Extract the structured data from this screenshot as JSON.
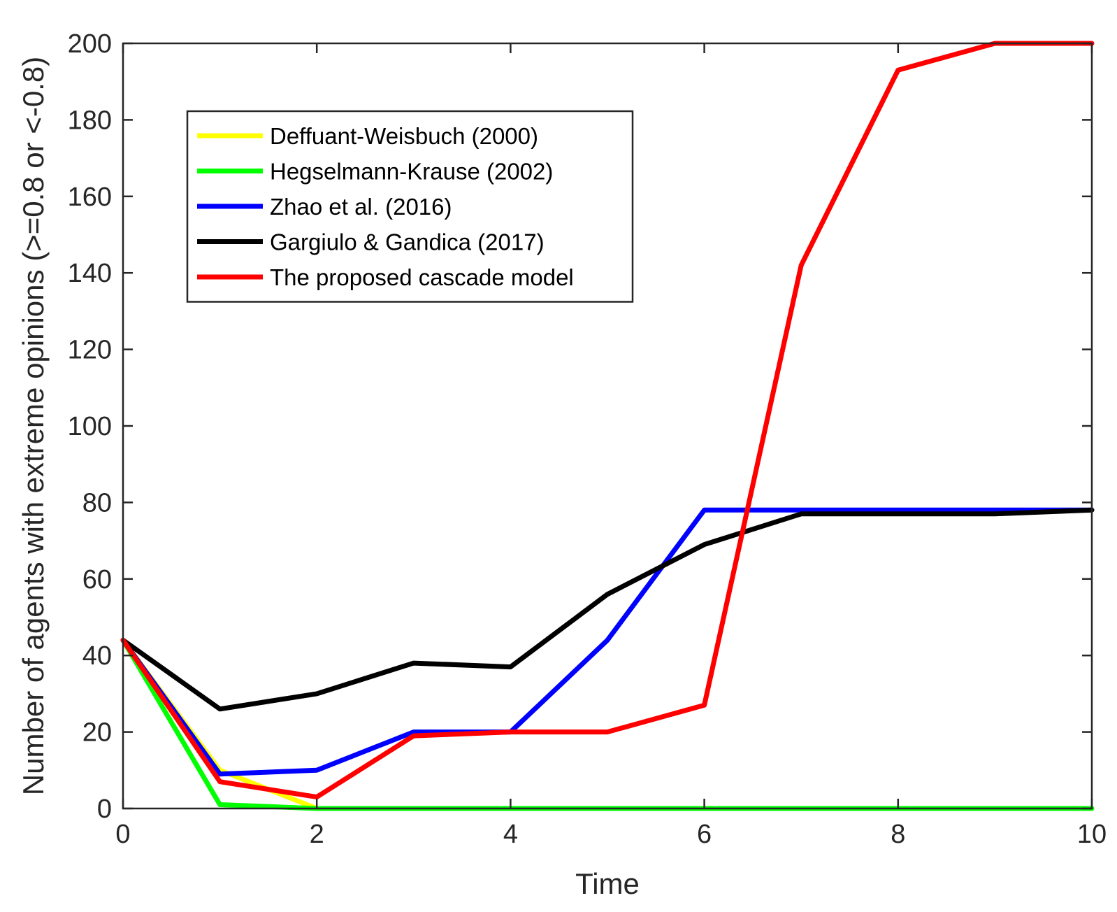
{
  "chart_data": {
    "type": "line",
    "title": "",
    "xlabel": "Time",
    "ylabel": "Number of agents with extreme opinions (>=0.8 or <-0.8)",
    "xlim": [
      0,
      10
    ],
    "ylim": [
      0,
      200
    ],
    "xticks": [
      0,
      2,
      4,
      6,
      8,
      10
    ],
    "yticks": [
      0,
      20,
      40,
      60,
      80,
      100,
      120,
      140,
      160,
      180,
      200
    ],
    "grid": false,
    "legend_position": "top-left",
    "x": [
      0,
      1,
      2,
      3,
      4,
      5,
      6,
      7,
      8,
      9,
      10
    ],
    "series": [
      {
        "name": "Deffuant-Weisbuch (2000)",
        "color": "#ffff00",
        "values": [
          44,
          10,
          0,
          0,
          0,
          0,
          0,
          0,
          0,
          0,
          0
        ]
      },
      {
        "name": "Hegselmann-Krause (2002)",
        "color": "#00ff00",
        "values": [
          44,
          1,
          0,
          0,
          0,
          0,
          0,
          0,
          0,
          0,
          0
        ]
      },
      {
        "name": "Zhao et al. (2016)",
        "color": "#0000ff",
        "values": [
          44,
          9,
          10,
          20,
          20,
          44,
          78,
          78,
          78,
          78,
          78
        ]
      },
      {
        "name": "Gargiulo & Gandica (2017)",
        "color": "#000000",
        "values": [
          44,
          26,
          30,
          38,
          37,
          56,
          69,
          77,
          77,
          77,
          78
        ]
      },
      {
        "name": "The proposed cascade model",
        "color": "#ff0000",
        "values": [
          44,
          7,
          3,
          19,
          20,
          20,
          27,
          142,
          193,
          200,
          200
        ]
      }
    ]
  }
}
